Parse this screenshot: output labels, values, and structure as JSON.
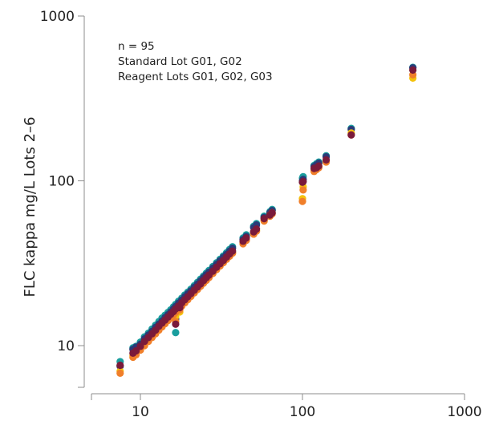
{
  "chart_data": {
    "type": "scatter",
    "title": "",
    "xlabel": "",
    "ylabel": "FLC kappa mg/L Lots 2–6",
    "x_scale": "log",
    "y_scale": "log",
    "xlim": [
      5,
      1000
    ],
    "ylim": [
      5,
      1000
    ],
    "x_ticks": [
      10,
      100,
      1000
    ],
    "x_tick_labels": [
      "10",
      "100",
      "1000"
    ],
    "y_ticks": [
      10,
      100,
      1000
    ],
    "y_tick_labels": [
      "10",
      "100",
      "1000"
    ],
    "grid": false,
    "legend": "none",
    "annotations": [
      "n = 95",
      "Standard Lot G01, G02",
      "Reagent Lots G01, G02, G03"
    ],
    "x": [
      7.5,
      9.0,
      9.4,
      10.0,
      10.6,
      11.2,
      11.8,
      12.4,
      13.0,
      13.6,
      14.2,
      14.8,
      15.4,
      16.0,
      16.5,
      17.2,
      18.0,
      18.8,
      19.6,
      20.5,
      21.5,
      22.5,
      23.5,
      24.5,
      25.5,
      26.5,
      28.0,
      29.5,
      31.0,
      32.5,
      34.0,
      35.5,
      37.0,
      43.0,
      45.0,
      50.0,
      52.0,
      58.0,
      63.0,
      65.0,
      100.0,
      101.0,
      118.0,
      122.0,
      126.0,
      140.0,
      200.0,
      480.0,
      16.5,
      17.5
    ],
    "series": [
      {
        "color": "#1a9e9e",
        "y": [
          8.0,
          9.7,
          9.9,
          10.5,
          11.3,
          11.9,
          12.6,
          13.3,
          14.0,
          14.7,
          15.3,
          15.9,
          16.5,
          17.2,
          17.8,
          18.6,
          19.4,
          20.3,
          21.1,
          22.0,
          23.1,
          24.2,
          25.3,
          26.4,
          27.5,
          28.6,
          30.2,
          31.8,
          33.4,
          35.0,
          36.6,
          38.3,
          39.8,
          45.0,
          47.0,
          53.0,
          55.0,
          61.0,
          65.0,
          67.0,
          104.0,
          106.0,
          124.0,
          127.0,
          130.0,
          142.0,
          208.0,
          488.0,
          12.0,
          18.0
        ]
      },
      {
        "color": "#2a3a78",
        "y": [
          7.5,
          9.5,
          9.8,
          10.2,
          11.0,
          11.6,
          12.2,
          12.9,
          13.5,
          14.1,
          14.8,
          15.4,
          16.0,
          16.7,
          17.3,
          18.1,
          18.9,
          19.8,
          20.6,
          21.5,
          22.6,
          23.6,
          24.7,
          25.8,
          26.9,
          27.9,
          29.5,
          31.1,
          32.7,
          34.3,
          35.8,
          37.4,
          39.0,
          44.0,
          46.0,
          52.0,
          54.0,
          60.0,
          64.0,
          66.0,
          100.0,
          102.0,
          122.0,
          125.0,
          128.0,
          140.0,
          205.0,
          485.0,
          14.5,
          17.5
        ]
      },
      {
        "color": "#f4c20d",
        "y": [
          7.0,
          8.7,
          9.0,
          9.6,
          10.2,
          10.8,
          11.4,
          12.0,
          12.6,
          13.2,
          13.8,
          14.4,
          15.0,
          15.6,
          16.1,
          16.8,
          17.6,
          18.4,
          19.2,
          20.1,
          21.1,
          22.1,
          23.1,
          24.1,
          25.1,
          26.1,
          27.6,
          29.1,
          30.6,
          32.1,
          33.6,
          35.1,
          36.6,
          42.0,
          44.0,
          48.0,
          50.0,
          58.0,
          62.0,
          64.0,
          78.0,
          92.0,
          116.0,
          118.0,
          122.0,
          132.0,
          195.0,
          420.0,
          15.0,
          16.0
        ]
      },
      {
        "color": "#f07f2a",
        "y": [
          6.8,
          8.5,
          8.8,
          9.4,
          10.0,
          10.6,
          11.2,
          11.8,
          12.4,
          13.0,
          13.6,
          14.2,
          14.8,
          15.4,
          15.9,
          16.6,
          17.4,
          18.2,
          19.0,
          19.9,
          20.9,
          21.9,
          22.9,
          23.9,
          24.9,
          25.9,
          27.4,
          28.9,
          30.4,
          31.9,
          33.4,
          34.9,
          36.4,
          41.5,
          43.5,
          47.5,
          49.5,
          57.0,
          61.0,
          63.0,
          75.0,
          88.0,
          114.0,
          117.0,
          120.0,
          130.0,
          190.0,
          440.0,
          14.0,
          16.5
        ]
      },
      {
        "color": "#7a1a3a",
        "y": [
          7.6,
          9.0,
          9.3,
          9.9,
          10.6,
          11.2,
          11.8,
          12.4,
          13.1,
          13.7,
          14.3,
          14.9,
          15.5,
          16.1,
          16.7,
          17.4,
          18.2,
          19.0,
          19.8,
          20.7,
          21.7,
          22.7,
          23.7,
          24.8,
          25.8,
          26.8,
          28.3,
          29.9,
          31.4,
          32.9,
          34.5,
          36.0,
          37.5,
          43.0,
          45.0,
          49.0,
          51.0,
          59.0,
          62.0,
          64.0,
          98.0,
          99.0,
          119.0,
          120.0,
          123.0,
          134.0,
          190.0,
          470.0,
          13.5,
          17.0
        ]
      }
    ]
  }
}
